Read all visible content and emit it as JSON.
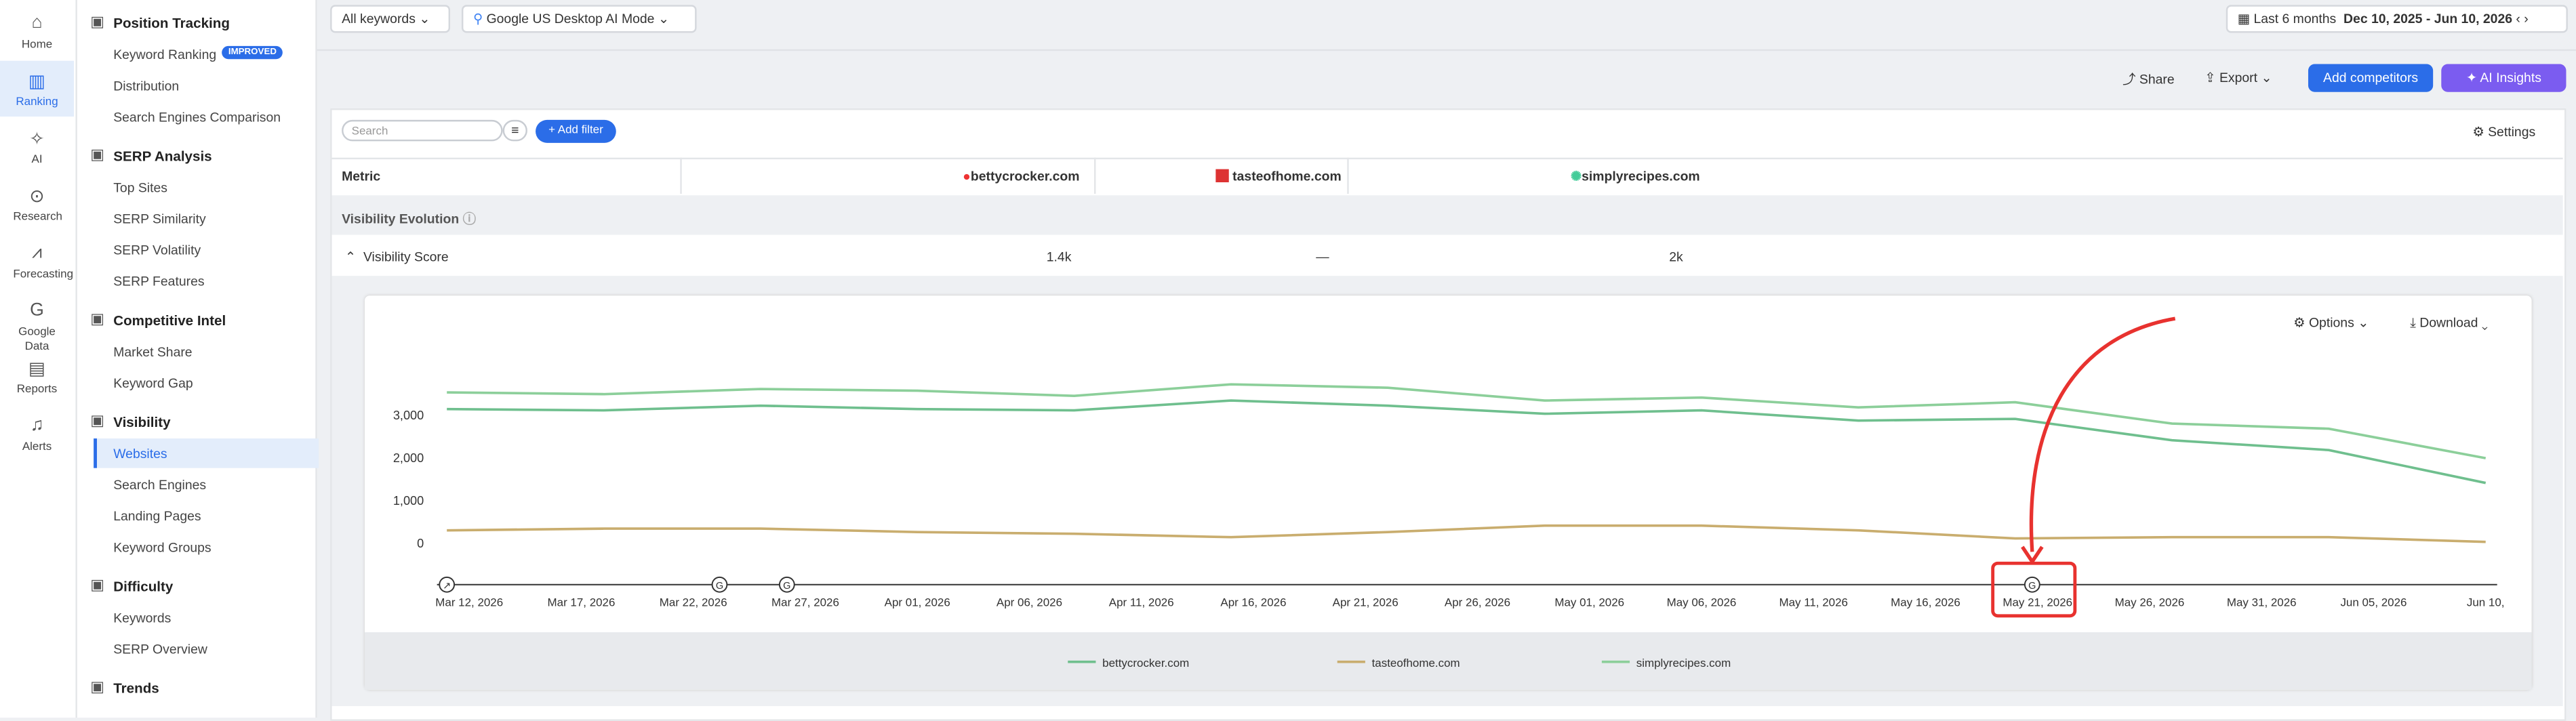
{
  "rail": [
    "Home",
    "Ranking",
    "AI",
    "Research",
    "Forecasting",
    "Google Data",
    "Reports",
    "Alerts"
  ],
  "nav": [
    {
      "title": "Position Tracking",
      "items": [
        "Keyword Ranking",
        "Distribution",
        "Search Engines Comparison"
      ]
    },
    {
      "title": "SERP Analysis",
      "items": [
        "Top Sites",
        "SERP Similarity",
        "SERP Volatility",
        "SERP Features"
      ]
    },
    {
      "title": "Competitive Intel",
      "items": [
        "Market Share",
        "Keyword Gap"
      ]
    },
    {
      "title": "Visibility",
      "items": [
        "Websites",
        "Search Engines",
        "Landing Pages",
        "Keyword Groups"
      ]
    },
    {
      "title": "Difficulty",
      "items": [
        "Keywords",
        "SERP Overview"
      ]
    },
    {
      "title": "Trends",
      "items": []
    }
  ],
  "badge": "IMPROVED",
  "toolbar": {
    "keywords": "All keywords",
    "engine": "Google US Desktop AI Mode",
    "period": "Last 6 months",
    "range": "Dec 10, 2025 - Jun 10, 2026"
  },
  "actions": {
    "share": "Share",
    "export": "Export",
    "competitors": "Add competitors",
    "insights": "AI Insights"
  },
  "filters": {
    "search": "Search",
    "add": "Add filter",
    "settings": "Settings"
  },
  "table": {
    "header": [
      "Metric",
      "bettycrocker.com",
      "tasteofhome.com",
      "simplyrecipes.com"
    ],
    "section": "Visibility Evolution",
    "row": [
      "Visibility Score",
      "1.4k",
      "—",
      "2k"
    ]
  },
  "chart_tools": {
    "options": "Options",
    "download": "Download"
  },
  "chart_data": {
    "type": "line",
    "x": [
      "2026-03-11",
      "2026-03-18",
      "2026-03-25",
      "2026-04-01",
      "2026-04-08",
      "2026-04-15",
      "2026-04-22",
      "2026-04-29",
      "2026-05-06",
      "2026-05-13",
      "2026-05-20",
      "2026-05-27",
      "2026-06-03",
      "2026-06-10"
    ],
    "series": [
      {
        "name": "bettycrocker.com",
        "color": "#6fbf8e",
        "values": [
          3150,
          3120,
          3230,
          3150,
          3120,
          3350,
          3230,
          3040,
          3120,
          2880,
          2920,
          2420,
          2190,
          1420
        ]
      },
      {
        "name": "tasteofhome.com",
        "color": "#c9ad6e",
        "values": [
          310,
          350,
          350,
          270,
          230,
          150,
          270,
          420,
          420,
          310,
          120,
          150,
          150,
          40
        ]
      },
      {
        "name": "simplyrecipes.com",
        "color": "#8ccf9a",
        "values": [
          3540,
          3500,
          3620,
          3580,
          3460,
          3730,
          3650,
          3350,
          3420,
          3190,
          3310,
          2810,
          2690,
          2000
        ]
      }
    ],
    "xlim": [
      "2026-03-11",
      "2026-06-10"
    ],
    "xticks": [
      {
        "value": "2026-03-12",
        "label": "Mar 12, 2026"
      },
      {
        "value": "2026-03-17",
        "label": "Mar 17, 2026"
      },
      {
        "value": "2026-03-22",
        "label": "Mar 22, 2026"
      },
      {
        "value": "2026-03-27",
        "label": "Mar 27, 2026"
      },
      {
        "value": "2026-04-01",
        "label": "Apr 01, 2026"
      },
      {
        "value": "2026-04-06",
        "label": "Apr 06, 2026"
      },
      {
        "value": "2026-04-11",
        "label": "Apr 11, 2026"
      },
      {
        "value": "2026-04-16",
        "label": "Apr 16, 2026"
      },
      {
        "value": "2026-04-21",
        "label": "Apr 21, 2026"
      },
      {
        "value": "2026-04-26",
        "label": "Apr 26, 2026"
      },
      {
        "value": "2026-05-01",
        "label": "May 01, 2026"
      },
      {
        "value": "2026-05-06",
        "label": "May 06, 2026"
      },
      {
        "value": "2026-05-11",
        "label": "May 11, 2026"
      },
      {
        "value": "2026-05-16",
        "label": "May 16, 2026"
      },
      {
        "value": "2026-05-21",
        "label": "May 21, 2026"
      },
      {
        "value": "2026-05-26",
        "label": "May 26, 2026"
      },
      {
        "value": "2026-05-31",
        "label": "May 31, 2026"
      },
      {
        "value": "2026-06-05",
        "label": "Jun 05, 2026"
      },
      {
        "value": "2026-06-10",
        "label": "Jun 10,"
      }
    ],
    "ylim": [
      -1000,
      4500
    ],
    "yticks": [
      0,
      {
        "value": 1000,
        "label": "1,000"
      },
      {
        "value": 2000,
        "label": "2,000"
      },
      {
        "value": 3000,
        "label": "3,000"
      }
    ],
    "grid": false,
    "legend": "bottom"
  }
}
